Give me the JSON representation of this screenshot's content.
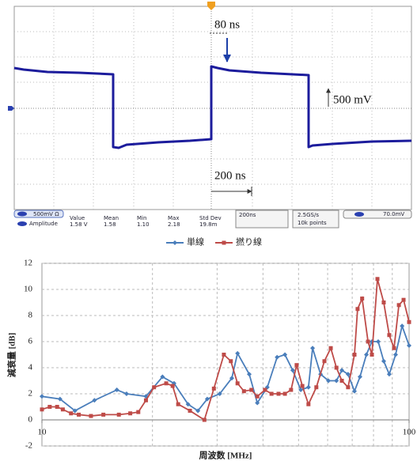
{
  "scope": {
    "annotations": {
      "rise_delay": "80 ns",
      "volt_scale": "500 mV",
      "time_scale": "200 ns"
    },
    "channel": "500mV Ω",
    "measurement": {
      "name": "Amplitude",
      "headers": [
        "Value",
        "Mean",
        "Min",
        "Max",
        "Std Dev"
      ],
      "values": [
        "1.58 V",
        "1.58",
        "1.10",
        "2.18",
        "19.8m"
      ]
    },
    "timebase": "200ns",
    "sample_rate": "2.5GS/s",
    "record_length": "10k points",
    "trigger_level": "70.0mV"
  },
  "chart_data": {
    "type": "line",
    "xlabel": "周波数 [MHz]",
    "ylabel": "減衰量 [dB]",
    "xscale": "log",
    "xlim": [
      10,
      100
    ],
    "xticks": [
      10,
      100
    ],
    "xminor_ticks": [
      20,
      30,
      40,
      50,
      60,
      70,
      80,
      90
    ],
    "ylim": [
      -2,
      12
    ],
    "yticks": [
      -2,
      0,
      2,
      4,
      6,
      8,
      10,
      12
    ],
    "grid": true,
    "legend": "top",
    "series": [
      {
        "name": "単線",
        "color": "#4a7ebb",
        "marker": "diamond",
        "x": [
          10,
          11.2,
          12.3,
          13.9,
          16,
          17,
          19.2,
          21.3,
          22.9,
          25,
          26.6,
          28.2,
          30.5,
          32.9,
          34.1,
          36.7,
          38.6,
          41.1,
          43.7,
          45.9,
          48.2,
          50.7,
          53.2,
          54.6,
          57.4,
          60.3,
          63.4,
          65.6,
          68.2,
          71,
          73.5,
          76.5,
          79.2,
          82.4,
          85.3,
          88.3,
          91.9,
          95.7,
          100
        ],
        "values": [
          1.8,
          1.6,
          0.7,
          1.5,
          2.3,
          2,
          1.8,
          3.3,
          2.8,
          1.2,
          0.7,
          1.6,
          2,
          3.2,
          5.1,
          3.5,
          1.3,
          2.5,
          4.8,
          5,
          3.8,
          2.3,
          2.5,
          5.5,
          3.5,
          3,
          3,
          3.8,
          3.5,
          2.2,
          3.3,
          5,
          6,
          6,
          4.5,
          3.5,
          5,
          7.2,
          5.7
        ]
      },
      {
        "name": "撚り線",
        "color": "#be4b48",
        "marker": "square",
        "x": [
          10,
          10.5,
          11,
          11.4,
          12,
          12.6,
          13.6,
          14.7,
          16.2,
          17.4,
          18.3,
          19.2,
          20.2,
          21.8,
          22.7,
          23.5,
          25.3,
          27.7,
          29.4,
          31.3,
          32.7,
          34.1,
          35.5,
          37.2,
          38.6,
          40.5,
          42.2,
          44.1,
          45.9,
          47.7,
          49.4,
          51.2,
          53.2,
          55.9,
          58.8,
          61.2,
          63.4,
          65.6,
          68.2,
          71,
          72.4,
          74.5,
          77.3,
          79.2,
          82,
          85.3,
          88.3,
          91,
          93.8,
          96.6,
          100
        ],
        "values": [
          0.8,
          1,
          1,
          0.8,
          0.5,
          0.4,
          0.3,
          0.4,
          0.4,
          0.5,
          0.6,
          1.5,
          2.5,
          2.8,
          2.6,
          1.2,
          0.7,
          0,
          2.4,
          5,
          4.5,
          2.8,
          2.2,
          2.3,
          1.8,
          2.3,
          2,
          2,
          2,
          2.3,
          4.2,
          2.6,
          1.2,
          2.5,
          4.5,
          5.5,
          4,
          3,
          2.5,
          5,
          8.5,
          9.3,
          6,
          5,
          10.8,
          9,
          6.5,
          5.5,
          8.8,
          9.2,
          7.5
        ]
      }
    ]
  }
}
